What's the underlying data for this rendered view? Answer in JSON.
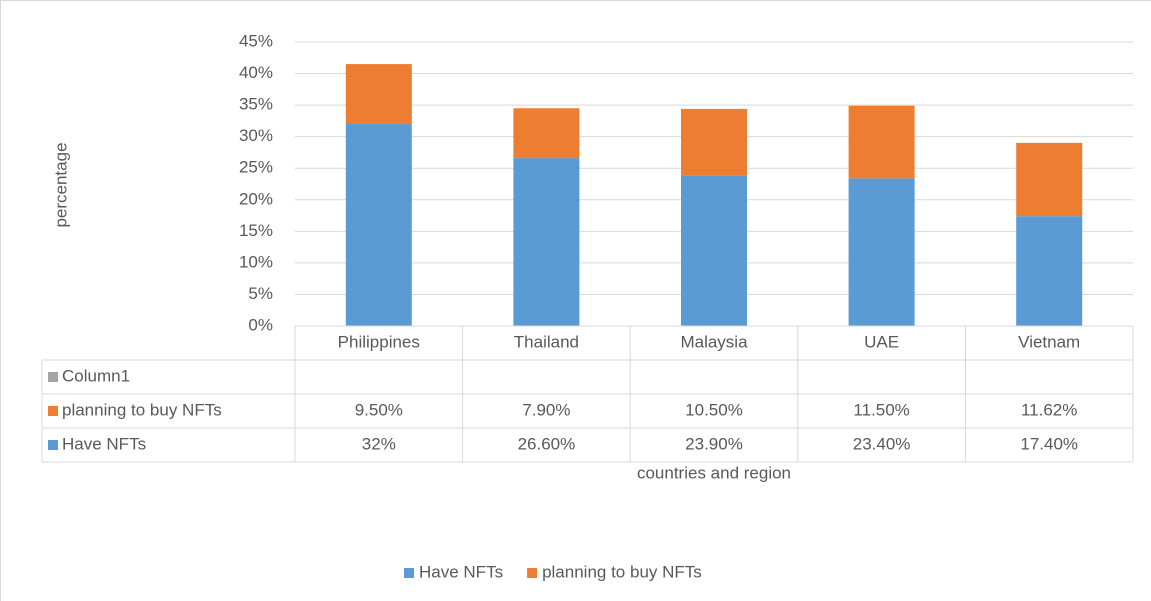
{
  "chart_data": {
    "type": "stacked_bar",
    "y_label": "percentage",
    "x_label": "countries and region",
    "categories": [
      "Philippines",
      "Thailand",
      "Malaysia",
      "UAE",
      "Vietnam"
    ],
    "series": [
      {
        "name": "Have NFTs",
        "color": "#5b9bd5",
        "values": [
          32,
          26.6,
          23.9,
          23.4,
          17.4
        ],
        "value_labels": [
          "32%",
          "26.60%",
          "23.90%",
          "23.40%",
          "17.40%"
        ]
      },
      {
        "name": "planning to buy NFTs",
        "color": "#ed7d31",
        "values": [
          9.5,
          7.9,
          10.5,
          11.5,
          11.62
        ],
        "value_labels": [
          "9.50%",
          "7.90%",
          "10.50%",
          "11.50%",
          "11.62%"
        ]
      },
      {
        "name": "Column1",
        "color": "#a5a5a5",
        "values": [
          null,
          null,
          null,
          null,
          null
        ],
        "in_legend": false
      }
    ],
    "ylim": [
      0,
      45
    ],
    "yticks": [
      {
        "value": 0,
        "label": "0%"
      },
      {
        "value": 5,
        "label": "5%"
      },
      {
        "value": 10,
        "label": "10%"
      },
      {
        "value": 15,
        "label": "15%"
      },
      {
        "value": 20,
        "label": "20%"
      },
      {
        "value": 25,
        "label": "25%"
      },
      {
        "value": 30,
        "label": "30%"
      },
      {
        "value": 35,
        "label": "35%"
      },
      {
        "value": 40,
        "label": "40%"
      },
      {
        "value": 45,
        "label": "45%"
      }
    ],
    "grid": true,
    "legend": "bottom",
    "data_table": true
  }
}
